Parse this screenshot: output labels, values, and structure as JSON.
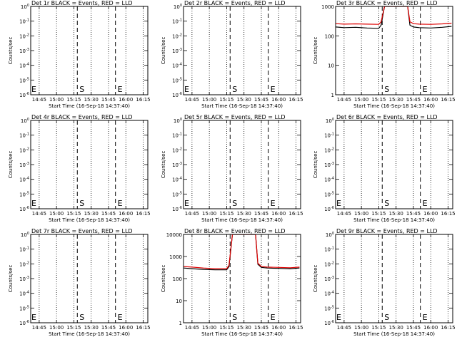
{
  "x_ticks": [
    "14:45",
    "15:00",
    "15:15",
    "15:30",
    "15:45",
    "16:00",
    "16:15"
  ],
  "x_label": "Start Time (16-Sep-18 14:37:40)",
  "y_label": "Counts/sec",
  "colors": {
    "events": "#000000",
    "lld": "#e00000",
    "frame": "#000000"
  },
  "chart_data": [
    {
      "type": "line",
      "title": "Det 1r BLACK = Events, RED = LLD",
      "y_scale": "log",
      "y_ticks": [
        "10^0",
        "10^-1",
        "10^-2",
        "10^-3",
        "10^-4",
        "10^-5",
        "10^-6"
      ],
      "ylim": [
        1e-06,
        1
      ],
      "x_range": [
        "14:37:40",
        "16:19"
      ],
      "markers": [
        {
          "label": "S",
          "time": "15:18"
        },
        {
          "label": "E",
          "time": "15:51"
        }
      ],
      "series": []
    },
    {
      "type": "line",
      "title": "Det 2r BLACK = Events, RED = LLD",
      "y_scale": "log",
      "y_ticks": [
        "10^0",
        "10^-1",
        "10^-2",
        "10^-3",
        "10^-4",
        "10^-5",
        "10^-6"
      ],
      "ylim": [
        1e-06,
        1
      ],
      "x_range": [
        "14:37:40",
        "16:19"
      ],
      "markers": [
        {
          "label": "S",
          "time": "15:18"
        },
        {
          "label": "E",
          "time": "15:51"
        }
      ],
      "series": []
    },
    {
      "type": "line",
      "title": "Det 3r BLACK = Events, RED = LLD",
      "y_scale": "log",
      "y_ticks": [
        "1",
        "10",
        "100",
        "1000"
      ],
      "ylim": [
        1,
        1000
      ],
      "x_range": [
        "14:37:40",
        "16:19"
      ],
      "markers": [
        {
          "label": "S",
          "time": "15:18"
        },
        {
          "label": "E",
          "time": "15:51"
        }
      ],
      "series": [
        {
          "role": "events",
          "x": [
            "14:38",
            "14:45",
            "14:55",
            "15:05",
            "15:15",
            "15:17",
            "15:20",
            "15:25",
            "15:40",
            "15:42",
            "15:45",
            "15:50",
            "16:00",
            "16:10",
            "16:18"
          ],
          "values": [
            200,
            190,
            195,
            185,
            180,
            230,
            1000,
            1000,
            1000,
            230,
            200,
            190,
            185,
            195,
            210
          ]
        },
        {
          "role": "lld",
          "x": [
            "14:38",
            "14:45",
            "14:55",
            "15:05",
            "15:15",
            "15:17",
            "15:20",
            "15:25",
            "15:40",
            "15:42",
            "15:45",
            "15:50",
            "16:00",
            "16:10",
            "16:18"
          ],
          "values": [
            260,
            250,
            255,
            250,
            245,
            300,
            1000,
            1000,
            1000,
            300,
            260,
            250,
            245,
            255,
            270
          ]
        }
      ]
    },
    {
      "type": "line",
      "title": "Det 4r BLACK = Events, RED = LLD",
      "y_scale": "log",
      "y_ticks": [
        "10^0",
        "10^-1",
        "10^-2",
        "10^-3",
        "10^-4",
        "10^-5",
        "10^-6"
      ],
      "ylim": [
        1e-06,
        1
      ],
      "x_range": [
        "14:37:40",
        "16:19"
      ],
      "markers": [
        {
          "label": "S",
          "time": "15:18"
        },
        {
          "label": "E",
          "time": "15:51"
        }
      ],
      "series": []
    },
    {
      "type": "line",
      "title": "Det 5r BLACK = Events, RED = LLD",
      "y_scale": "log",
      "y_ticks": [
        "10^0",
        "10^-1",
        "10^-2",
        "10^-3",
        "10^-4",
        "10^-5",
        "10^-6"
      ],
      "ylim": [
        1e-06,
        1
      ],
      "x_range": [
        "14:37:40",
        "16:19"
      ],
      "markers": [
        {
          "label": "S",
          "time": "15:18"
        },
        {
          "label": "E",
          "time": "15:51"
        }
      ],
      "series": []
    },
    {
      "type": "line",
      "title": "Det 6r BLACK = Events, RED = LLD",
      "y_scale": "log",
      "y_ticks": [
        "10^0",
        "10^-1",
        "10^-2",
        "10^-3",
        "10^-4",
        "10^-5",
        "10^-6"
      ],
      "ylim": [
        1e-06,
        1
      ],
      "x_range": [
        "14:37:40",
        "16:19"
      ],
      "markers": [
        {
          "label": "S",
          "time": "15:18"
        },
        {
          "label": "E",
          "time": "15:51"
        }
      ],
      "series": []
    },
    {
      "type": "line",
      "title": "Det 7r BLACK = Events, RED = LLD",
      "y_scale": "log",
      "y_ticks": [
        "10^0",
        "10^-1",
        "10^-2",
        "10^-3",
        "10^-4",
        "10^-5",
        "10^-6"
      ],
      "ylim": [
        1e-06,
        1
      ],
      "x_range": [
        "14:37:40",
        "16:19"
      ],
      "markers": [
        {
          "label": "S",
          "time": "15:18"
        },
        {
          "label": "E",
          "time": "15:51"
        }
      ],
      "series": []
    },
    {
      "type": "line",
      "title": "Det 8r BLACK = Events, RED = LLD",
      "y_scale": "log",
      "y_ticks": [
        "1",
        "10",
        "100",
        "1000",
        "10000"
      ],
      "ylim": [
        1,
        10000
      ],
      "x_range": [
        "14:37:40",
        "16:19"
      ],
      "markers": [
        {
          "label": "S",
          "time": "15:18"
        },
        {
          "label": "E",
          "time": "15:51"
        }
      ],
      "series": [
        {
          "role": "events",
          "x": [
            "14:38",
            "14:45",
            "14:55",
            "15:05",
            "15:15",
            "15:17",
            "15:20",
            "15:25",
            "15:40",
            "15:42",
            "15:45",
            "15:50",
            "16:00",
            "16:10",
            "16:18"
          ],
          "values": [
            300,
            280,
            260,
            250,
            250,
            350,
            10000,
            10000,
            10000,
            450,
            320,
            300,
            290,
            280,
            300
          ]
        },
        {
          "role": "lld",
          "x": [
            "14:38",
            "14:45",
            "14:55",
            "15:05",
            "15:15",
            "15:17",
            "15:20",
            "15:25",
            "15:40",
            "15:42",
            "15:45",
            "15:50",
            "16:00",
            "16:10",
            "16:18"
          ],
          "values": [
            350,
            330,
            300,
            280,
            280,
            400,
            10000,
            10000,
            10000,
            500,
            350,
            330,
            320,
            310,
            330
          ]
        }
      ]
    },
    {
      "type": "line",
      "title": "Det 9r BLACK = Events, RED = LLD",
      "y_scale": "log",
      "y_ticks": [
        "10^0",
        "10^-1",
        "10^-2",
        "10^-3",
        "10^-4",
        "10^-5",
        "10^-6"
      ],
      "ylim": [
        1e-06,
        1
      ],
      "x_range": [
        "14:37:40",
        "16:19"
      ],
      "markers": [
        {
          "label": "S",
          "time": "15:18"
        },
        {
          "label": "E",
          "time": "15:51"
        }
      ],
      "series": []
    }
  ]
}
